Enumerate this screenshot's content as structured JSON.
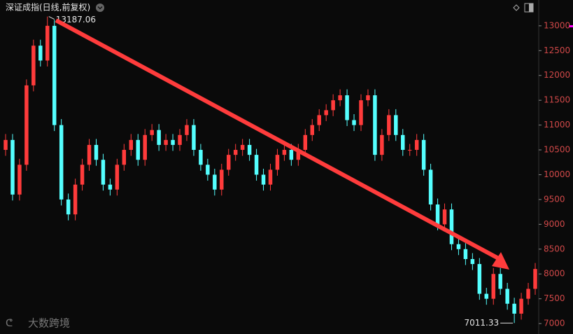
{
  "chart_data": {
    "type": "candlestick",
    "title": "深证成指(日线,前复权)",
    "watermark": "大数跨境",
    "ylim": [
      6790,
      13520
    ],
    "yticks": [
      7000,
      7500,
      8000,
      8500,
      9000,
      9500,
      10000,
      10500,
      11000,
      11500,
      12000,
      12500,
      13000
    ],
    "up_color": "#ff3b3b",
    "down_color": "#54ffff",
    "series": [
      {
        "name": "深证成指",
        "open": [
          10500,
          10700,
          9600,
          10200,
          11800,
          12600,
          12300,
          13000,
          11000,
          9500,
          9200,
          9800,
          10200,
          10600,
          10300,
          9800,
          9700,
          10200,
          10500,
          10700,
          10300,
          10800,
          10900,
          10600,
          10700,
          10600,
          10800,
          11000,
          10500,
          10200,
          10000,
          9700,
          10100,
          10400,
          10500,
          10600,
          10400,
          10000,
          9800,
          10100,
          10400,
          10500,
          10300,
          10500,
          10800,
          11000,
          11200,
          11300,
          11500,
          11600,
          11100,
          11000,
          11500,
          11600,
          10400,
          10800,
          11200,
          10800,
          10500,
          10500,
          10700,
          10100,
          9400,
          9000,
          9300,
          8600,
          8500,
          8300,
          8200,
          7600,
          7500,
          8000,
          7700,
          7400,
          7200,
          7500,
          7700
        ],
        "high": [
          10820,
          10820,
          10320,
          11920,
          12720,
          12720,
          13187.06,
          13120,
          11120,
          9620,
          9920,
          10320,
          10720,
          10720,
          10420,
          9920,
          10320,
          10620,
          10820,
          10820,
          10920,
          11020,
          11020,
          10820,
          10820,
          10920,
          11120,
          11120,
          10620,
          10320,
          10120,
          10220,
          10520,
          10620,
          10720,
          10720,
          10520,
          10120,
          10220,
          10520,
          10620,
          10620,
          10620,
          10920,
          11120,
          11320,
          11420,
          11620,
          11720,
          11720,
          11220,
          11620,
          11720,
          11720,
          10920,
          11320,
          11320,
          10920,
          10620,
          10820,
          10820,
          10220,
          9520,
          9420,
          9420,
          8720,
          8620,
          8420,
          8320,
          7720,
          8120,
          8120,
          7820,
          7520,
          7620,
          7820,
          8220
        ],
        "low": [
          10380,
          9480,
          9480,
          10080,
          11680,
          12180,
          12180,
          10880,
          9380,
          9080,
          9080,
          9680,
          10080,
          10180,
          9680,
          9580,
          9580,
          10080,
          10380,
          10180,
          10180,
          10680,
          10480,
          10480,
          10480,
          10480,
          10680,
          10380,
          10080,
          9880,
          9580,
          9580,
          9980,
          10280,
          10380,
          10280,
          9880,
          9680,
          9680,
          9980,
          10280,
          10180,
          10180,
          10380,
          10680,
          10880,
          11080,
          11180,
          11380,
          10980,
          10880,
          10880,
          11380,
          10280,
          10280,
          10680,
          10680,
          10380,
          10380,
          10380,
          9980,
          9280,
          8880,
          8880,
          8480,
          8380,
          8180,
          8080,
          7480,
          7380,
          7380,
          7580,
          7280,
          7011.33,
          7080,
          7380,
          7580
        ],
        "close": [
          10700,
          9600,
          10200,
          11800,
          12600,
          12300,
          13000,
          11000,
          9500,
          9200,
          9800,
          10200,
          10600,
          10300,
          9800,
          9700,
          10200,
          10500,
          10700,
          10300,
          10800,
          10900,
          10600,
          10700,
          10600,
          10800,
          11000,
          10500,
          10200,
          10000,
          9700,
          10100,
          10400,
          10500,
          10600,
          10400,
          10000,
          9800,
          10100,
          10400,
          10500,
          10300,
          10500,
          10800,
          11000,
          11200,
          11300,
          11500,
          11600,
          11100,
          11000,
          11500,
          11600,
          10400,
          10800,
          11200,
          10800,
          10500,
          10500,
          10700,
          10100,
          9400,
          9000,
          9300,
          8600,
          8500,
          8300,
          8200,
          7600,
          7500,
          8000,
          7700,
          7400,
          7200,
          7500,
          7700,
          8100
        ]
      }
    ],
    "max_label_index": 6,
    "min_label_index": 73
  }
}
